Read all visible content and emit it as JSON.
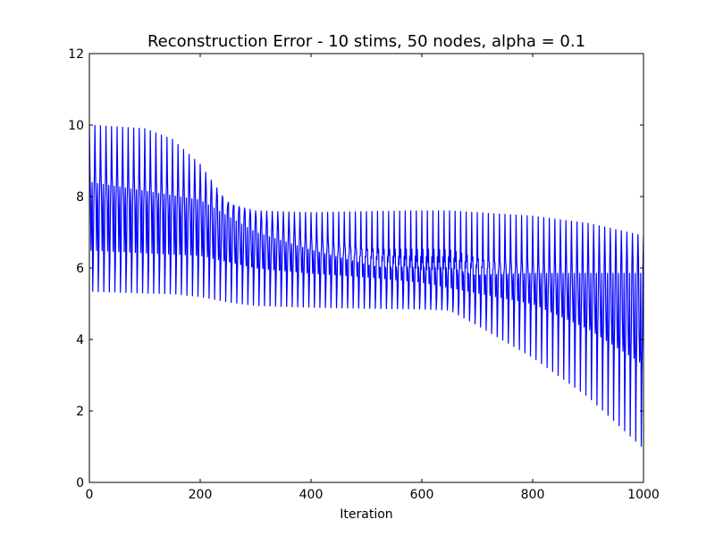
{
  "chart_data": {
    "type": "line",
    "title": "Reconstruction Error - 10 stims, 50 nodes, alpha = 0.1",
    "xlabel": "Iteration",
    "ylabel": "",
    "xlim": [
      0,
      1000
    ],
    "ylim": [
      0,
      12
    ],
    "x_ticks": [
      0,
      200,
      400,
      600,
      800,
      1000
    ],
    "y_ticks": [
      0,
      2,
      4,
      6,
      8,
      10,
      12
    ],
    "grid": false,
    "legend": "none",
    "series": [
      {
        "color": "#0000ff",
        "pattern": "10-iteration cycle over 10 stimuli; envelope of per-cycle extremes",
        "envelope_x": [
          0,
          100,
          150,
          200,
          250,
          300,
          400,
          500,
          600,
          650,
          700,
          800,
          900,
          1000
        ],
        "envelope_max": [
          10.0,
          9.9,
          9.6,
          8.9,
          7.8,
          7.6,
          7.55,
          7.58,
          7.6,
          7.6,
          7.55,
          7.45,
          7.25,
          6.9
        ],
        "envelope_min": [
          5.35,
          5.3,
          5.28,
          5.2,
          5.05,
          4.95,
          4.9,
          4.87,
          4.85,
          4.82,
          4.4,
          3.5,
          2.4,
          0.95
        ],
        "upper_band_x": [
          0,
          200,
          300,
          400,
          500,
          600,
          700,
          800,
          900,
          1000
        ],
        "upper_band_max": [
          8.8,
          8.3,
          7.4,
          6.9,
          6.5,
          6.15,
          6.2,
          6.25,
          6.25,
          6.25
        ],
        "upper_band_min": [
          6.5,
          6.35,
          6.0,
          5.85,
          5.75,
          5.6,
          5.3,
          5.0,
          4.3,
          3.3
        ]
      }
    ]
  }
}
